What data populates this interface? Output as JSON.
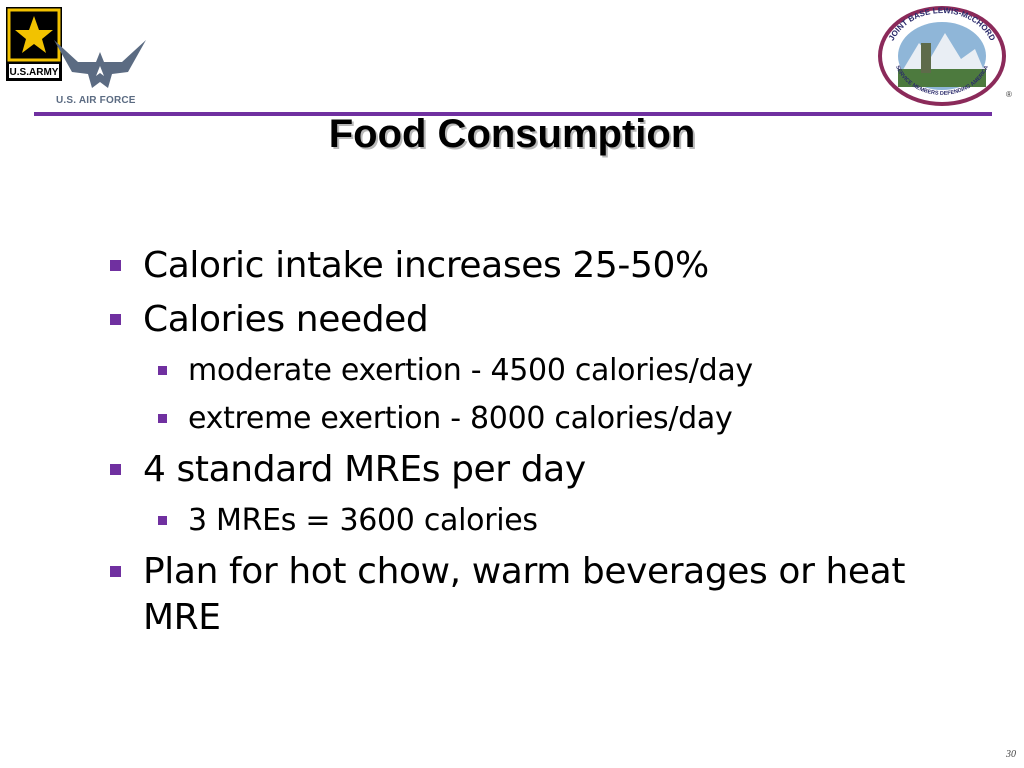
{
  "logos": {
    "army_text": "U.S.ARMY",
    "air_force_text": "U.S. AIR FORCE",
    "jblm_ring_text": "JOINT BASE LEWIS-McCHORD",
    "jblm_motto": "SERVICE MEMBERS DEFENDING AMERICA",
    "registered_mark": "®"
  },
  "colors": {
    "accent": "#7030a0",
    "title": "#000000",
    "army_gold": "#f2c200",
    "jblm_ring": "#8b2a5a"
  },
  "slide": {
    "title": "Food Consumption",
    "page_number": "30",
    "bullets": [
      {
        "level": 1,
        "text": "Caloric intake increases 25-50%"
      },
      {
        "level": 1,
        "text": "Calories needed"
      },
      {
        "level": 2,
        "text": "moderate exertion - 4500 calories/day"
      },
      {
        "level": 2,
        "text": "extreme exertion - 8000 calories/day"
      },
      {
        "level": 1,
        "text": "4 standard MREs per day"
      },
      {
        "level": 2,
        "text": "3 MREs = 3600 calories"
      },
      {
        "level": 1,
        "text": "Plan for hot chow, warm beverages or heat MRE"
      }
    ]
  }
}
